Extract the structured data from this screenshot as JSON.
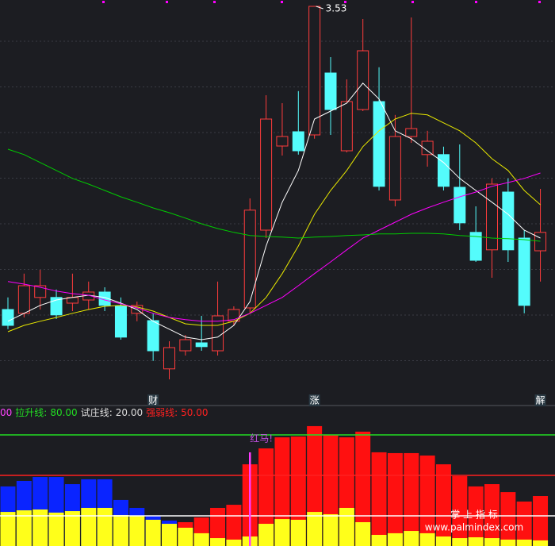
{
  "chart_data": [
    {
      "type": "candlestick",
      "categories": [
        null,
        null,
        null,
        null,
        null,
        null,
        null,
        null,
        null,
        "财",
        null,
        null,
        null,
        null,
        null,
        null,
        null,
        null,
        null,
        "涨",
        null,
        null,
        null,
        null,
        null,
        null,
        null,
        null,
        null,
        null,
        null,
        null,
        null,
        "解"
      ],
      "open": [
        2.575,
        2.563,
        2.613,
        2.613,
        2.595,
        2.605,
        2.63,
        2.585,
        2.563,
        2.54,
        2.388,
        2.445,
        2.47,
        2.445,
        2.538,
        2.58,
        2.825,
        3.09,
        3.135,
        3.125,
        3.32,
        3.075,
        3.205,
        3.23,
        2.92,
        3.12,
        3.063,
        3.063,
        2.96,
        2.818,
        2.763,
        2.945,
        2.8,
        2.76
      ],
      "close": [
        2.525,
        2.65,
        2.65,
        2.558,
        2.613,
        2.63,
        2.588,
        2.488,
        2.588,
        2.445,
        2.455,
        2.48,
        2.458,
        2.555,
        2.575,
        2.888,
        3.175,
        3.12,
        3.075,
        3.53,
        3.205,
        3.23,
        3.39,
        2.963,
        3.12,
        3.145,
        3.105,
        2.963,
        2.848,
        2.73,
        2.97,
        2.763,
        2.588,
        2.818
      ],
      "high": [
        2.613,
        2.688,
        2.7,
        2.638,
        2.688,
        2.663,
        2.645,
        2.613,
        2.6,
        2.563,
        2.475,
        2.495,
        2.555,
        2.663,
        2.585,
        2.925,
        3.25,
        3.225,
        3.263,
        3.53,
        3.37,
        3.3,
        3.49,
        3.338,
        3.188,
        3.495,
        3.138,
        3.088,
        3.095,
        2.9,
        2.988,
        2.988,
        2.825,
        2.955
      ],
      "low": [
        2.513,
        2.55,
        2.575,
        2.545,
        2.57,
        2.575,
        2.57,
        2.48,
        2.538,
        2.413,
        2.355,
        2.43,
        2.445,
        2.43,
        2.525,
        2.563,
        2.8,
        3.06,
        3.063,
        3.113,
        3.125,
        3.07,
        3.2,
        2.95,
        2.9,
        3.1,
        3.025,
        2.95,
        2.825,
        2.725,
        2.675,
        2.725,
        2.563,
        2.663
      ],
      "up_color": "#ff3c3c",
      "down_color": "#54fcfc",
      "lines": [
        {
          "color": "#ffffff",
          "values": [
            2.538,
            2.563,
            2.588,
            2.605,
            2.613,
            2.62,
            2.613,
            2.595,
            2.575,
            2.538,
            2.513,
            2.488,
            2.48,
            2.488,
            2.525,
            2.6,
            2.775,
            2.913,
            3.013,
            3.175,
            3.2,
            3.225,
            3.288,
            3.238,
            3.138,
            3.113,
            3.075,
            3.038,
            2.988,
            2.95,
            2.913,
            2.875,
            2.825,
            2.8
          ]
        },
        {
          "color": "#e8e800",
          "values": [
            2.505,
            2.525,
            2.538,
            2.55,
            2.563,
            2.575,
            2.585,
            2.588,
            2.583,
            2.57,
            2.55,
            2.53,
            2.525,
            2.525,
            2.538,
            2.563,
            2.613,
            2.688,
            2.775,
            2.875,
            2.95,
            3.013,
            3.088,
            3.138,
            3.175,
            3.193,
            3.188,
            3.163,
            3.138,
            3.1,
            3.05,
            3.013,
            2.95,
            2.905
          ]
        },
        {
          "color": "#ff00ff",
          "values": [
            2.663,
            2.655,
            2.645,
            2.633,
            2.625,
            2.62,
            2.605,
            2.593,
            2.58,
            2.563,
            2.55,
            2.543,
            2.538,
            2.538,
            2.543,
            2.563,
            2.588,
            2.613,
            2.65,
            2.688,
            2.725,
            2.763,
            2.8,
            2.825,
            2.85,
            2.875,
            2.895,
            2.913,
            2.93,
            2.945,
            2.963,
            2.975,
            2.988,
            3.005
          ]
        },
        {
          "color": "#00cc00",
          "values": [
            3.08,
            3.063,
            3.038,
            3.013,
            2.988,
            2.97,
            2.95,
            2.93,
            2.913,
            2.895,
            2.88,
            2.863,
            2.845,
            2.83,
            2.818,
            2.808,
            2.805,
            2.803,
            2.8,
            2.803,
            2.805,
            2.808,
            2.81,
            2.813,
            2.813,
            2.815,
            2.815,
            2.813,
            2.808,
            2.805,
            2.8,
            2.798,
            2.795,
            2.79
          ]
        }
      ],
      "ylim": [
        2.3,
        3.55
      ]
    },
    {
      "type": "bar",
      "legend_prefix": "00",
      "series": [
        {
          "color": "#0a24ff",
          "values": [
            41.8,
            45.9,
            48.8,
            48.8,
            43.5,
            47.1,
            47.1,
            31.8,
            25.9,
            20,
            16.5,
            null,
            null,
            null,
            null,
            null,
            null,
            null,
            null,
            null,
            null,
            null,
            null,
            null,
            null,
            null,
            null,
            null,
            null,
            null,
            null,
            null,
            null,
            null
          ]
        },
        {
          "color": "#ff1010",
          "values": [
            null,
            null,
            null,
            null,
            null,
            null,
            null,
            null,
            null,
            null,
            null,
            15.3,
            18.8,
            25.9,
            28.2,
            58.2,
            70,
            78.2,
            78.8,
            86.5,
            80,
            78.2,
            82.4,
            67.1,
            66.5,
            66.5,
            64.7,
            58.2,
            49.4,
            41.8,
            43.5,
            37.6,
            30.6,
            34.7
          ]
        },
        {
          "color": "#ffff1a",
          "values": [
            22.9,
            24.1,
            24.7,
            22.4,
            23.5,
            25.9,
            25.9,
            20.6,
            20,
            17.1,
            14.1,
            11.2,
            7.1,
            3.5,
            2.4,
            4.7,
            14.1,
            17.6,
            17.1,
            22.9,
            21.2,
            25.9,
            15.3,
            5.9,
            7.1,
            8.8,
            7.1,
            4.7,
            3.5,
            4.1,
            3.5,
            2.4,
            2.4,
            1.8
          ]
        }
      ],
      "reference_lines": [
        {
          "name": "拉升线:",
          "value": 80,
          "label": "80.00",
          "color": "#22dd22"
        },
        {
          "name": "试庄线:",
          "value": 20,
          "label": "20.00",
          "color": "#ffffff"
        },
        {
          "name": "强弱线:",
          "value": 50,
          "label": "50.00",
          "color": "#ff2020"
        }
      ],
      "annotation": {
        "text": "红马!",
        "index": 15,
        "color": "#ff3cff"
      },
      "ylim": [
        0,
        100
      ]
    }
  ],
  "watermark": {
    "title": "掌 上 指 标",
    "url": "www.palmindex.com"
  }
}
